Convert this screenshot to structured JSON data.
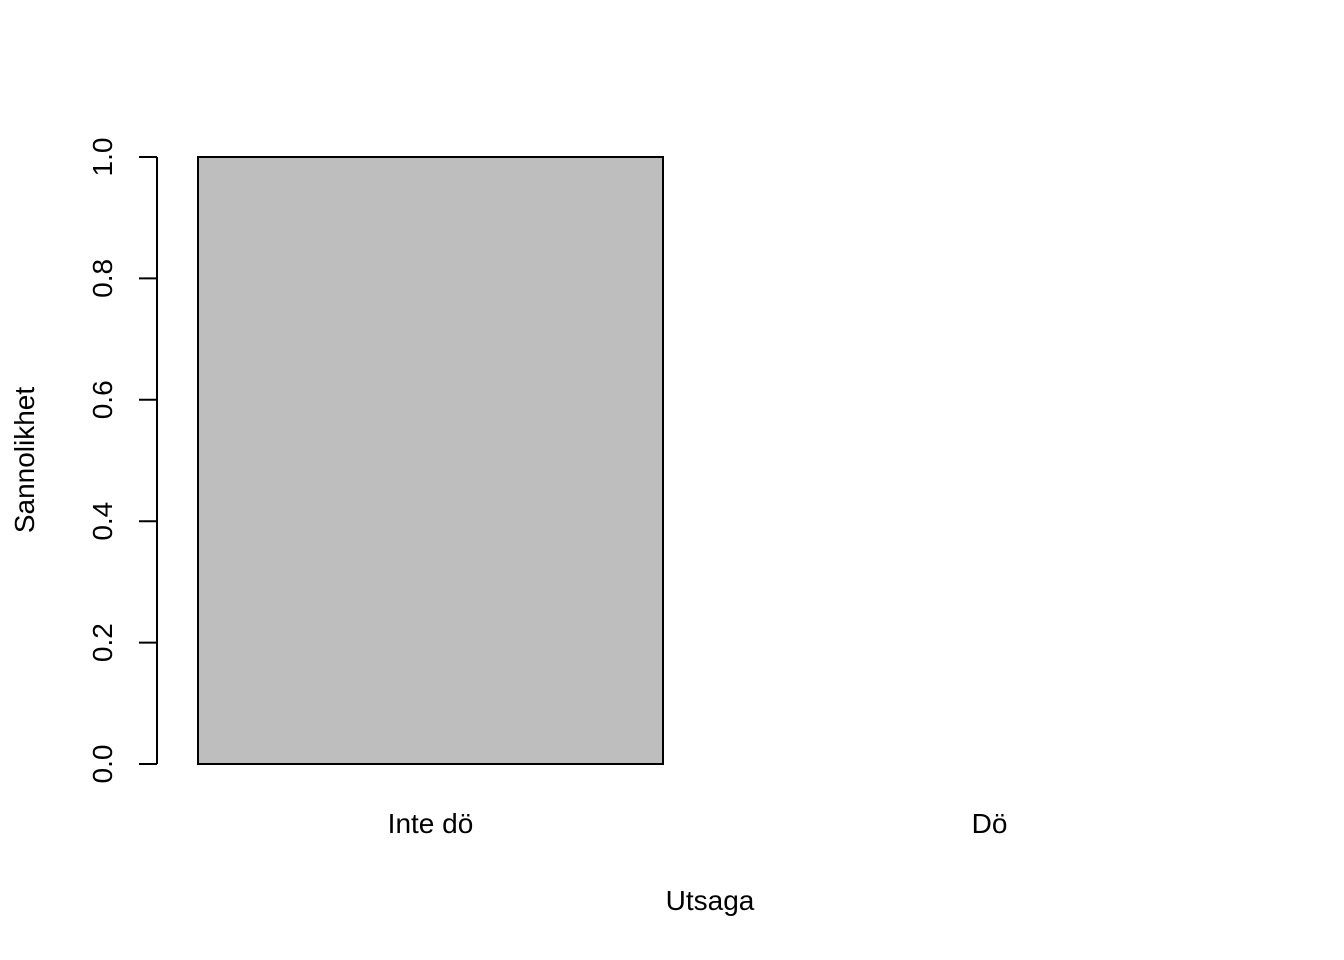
{
  "chart_data": {
    "type": "bar",
    "title": "",
    "xlabel": "Utsaga",
    "ylabel": "Sannolikhet",
    "categories": [
      "Inte dö",
      "Dö"
    ],
    "values": [
      1.0,
      0.0
    ],
    "ylim": [
      0,
      1
    ],
    "yticks": [
      "0.0",
      "0.2",
      "0.4",
      "0.6",
      "0.8",
      "1.0"
    ],
    "grid": false,
    "legend": "none",
    "colors": {
      "bar_fill": "#bebebe",
      "bar_stroke": "#000000",
      "axis": "#000000",
      "background": "#ffffff"
    }
  }
}
